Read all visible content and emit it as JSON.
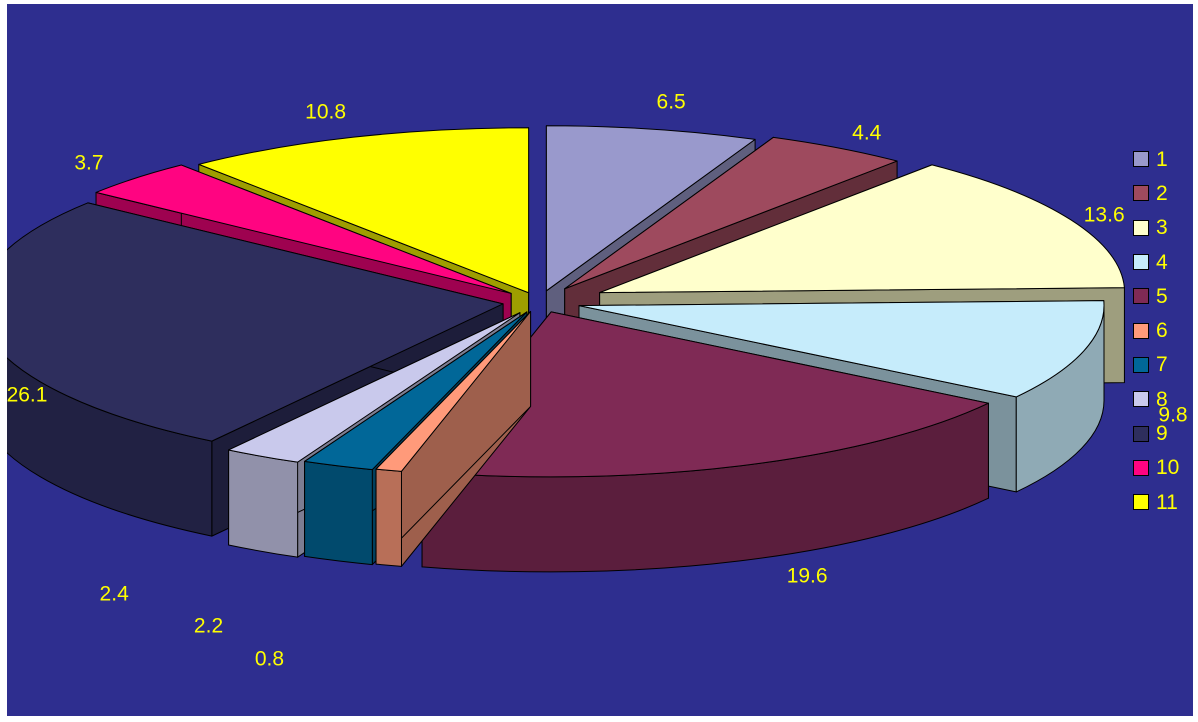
{
  "chart_data": {
    "type": "pie",
    "three_d": true,
    "exploded": true,
    "title": "",
    "categories": [
      "1",
      "2",
      "3",
      "4",
      "5",
      "6",
      "7",
      "8",
      "9",
      "10",
      "11"
    ],
    "values": [
      6.5,
      4.4,
      13.6,
      9.8,
      19.6,
      0.8,
      2.2,
      2.4,
      26.1,
      3.7,
      10.8
    ],
    "value_labels": [
      "6.5",
      "4.4",
      "13.6",
      "9.8",
      "19.6",
      "0.8",
      "2.2",
      "2.4",
      "26.1",
      "3.7",
      "10.8"
    ],
    "colors": [
      "#9999cc",
      "#9e4a5e",
      "#ffffcc",
      "#c6ecfb",
      "#7f2a55",
      "#ff9a7a",
      "#016798",
      "#c9c9ec",
      "#2e2e5d",
      "#ff0481",
      "#ffff00"
    ],
    "legend_placement": "right",
    "background": "#2e2e8f",
    "label_color": "#ffff00"
  }
}
